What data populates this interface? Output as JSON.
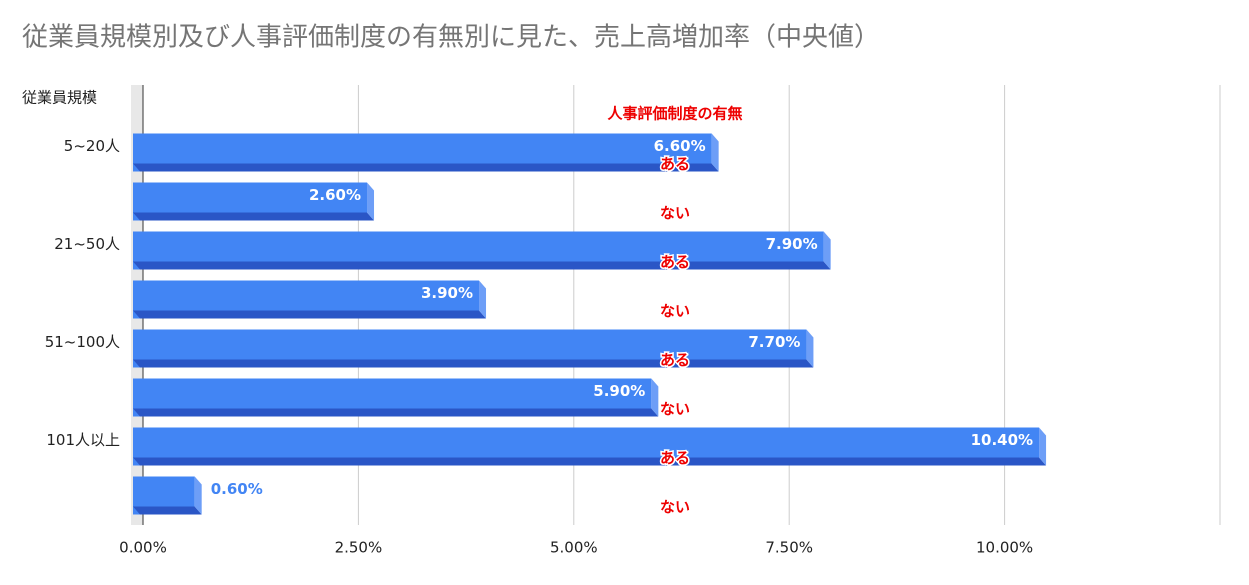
{
  "chart_data": {
    "type": "bar",
    "orientation": "horizontal",
    "title": "従業員規模別及び人事評価制度の有無別に見た、売上高増加率（中央値）",
    "y_label": "従業員規模",
    "annotation": "人事評価制度の有無",
    "categories": [
      "5~20人",
      null,
      "21~50人",
      null,
      "51~100人",
      null,
      "101人以上",
      null
    ],
    "sub_labels": [
      "ある",
      "ない",
      "ある",
      "ない",
      "ある",
      "ない",
      "ある",
      "ない"
    ],
    "values": [
      6.6,
      2.6,
      7.9,
      3.9,
      7.7,
      5.9,
      10.4,
      0.6
    ],
    "value_labels": [
      "6.60%",
      "2.60%",
      "7.90%",
      "3.90%",
      "7.70%",
      "5.90%",
      "10.40%",
      "0.60%"
    ],
    "color": "#4285f4",
    "xlim": [
      0,
      12.5
    ],
    "xticks": [
      {
        "value": 0,
        "label": "0.00%"
      },
      {
        "value": 2.5,
        "label": "2.50%"
      },
      {
        "value": 5,
        "label": "5.00%"
      },
      {
        "value": 7.5,
        "label": "7.50%"
      },
      {
        "value": 10,
        "label": "10.00%"
      }
    ],
    "grid": true
  }
}
